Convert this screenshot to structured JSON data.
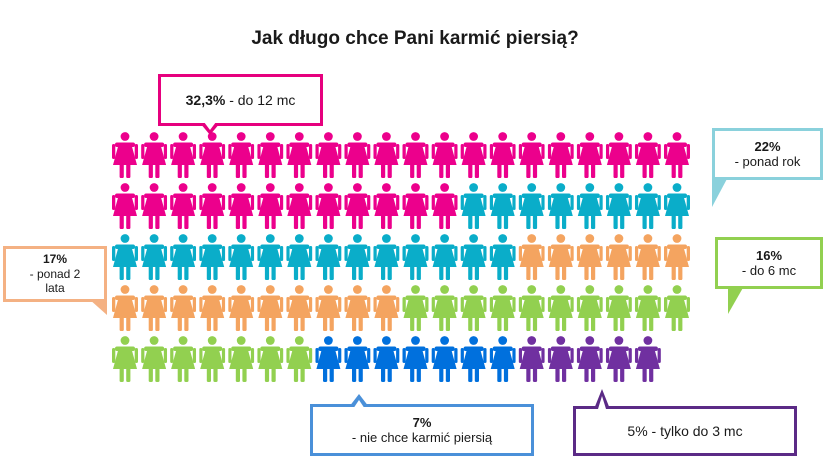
{
  "title": "Jak długo chce Pani karmić piersią?",
  "chart_data": {
    "type": "pictogram",
    "title": "Jak długo chce Pani karmić piersią?",
    "icon": "woman-icon",
    "series": [
      {
        "name": "do 12 mc",
        "label": "- do 12 mc",
        "value": 32.3,
        "value_label": "32,3%",
        "icons": 32,
        "color": "#ec008c"
      },
      {
        "name": "ponad rok",
        "label": "- ponad rok",
        "value": 22,
        "value_label": "22%",
        "icons": 22,
        "color": "#0aadc9"
      },
      {
        "name": "do 6 mc",
        "label": "- do 6 mc",
        "value": 16,
        "value_label": "16%",
        "icons": 16,
        "color": "#f4a460"
      },
      {
        "name": "ponad 2 lata",
        "label": "- ponad 2 lata",
        "value": 17,
        "value_label": "17%",
        "icons": 17,
        "color": "#92d050"
      },
      {
        "name": "nie chce karmić piersią",
        "label": "- nie chce karmić piersią",
        "value": 7,
        "value_label": "7%",
        "icons": 7,
        "color": "#0070dd"
      },
      {
        "name": "tylko do 3 mc",
        "label": "- tylko do 3 mc",
        "value": 5,
        "value_label": "5%",
        "icons": 5,
        "color": "#7030a0"
      }
    ],
    "grid": {
      "rows": 5,
      "columns": 20
    }
  },
  "callouts": {
    "do12": {
      "pct": "32,3%",
      "text": "- do 12 mc",
      "border": "#e6007e"
    },
    "ponadrok": {
      "pct": "22%",
      "text": "- ponad rok",
      "border": "#8ad1dc"
    },
    "do6": {
      "pct": "16%",
      "text": "- do 6 mc",
      "border": "#92d050"
    },
    "ponad2": {
      "pct": "17%",
      "text_line1": "- ponad 2",
      "text_line2": "lata",
      "border": "#f4b183"
    },
    "nie": {
      "pct": "7%",
      "text": "- nie chce karmić piersią",
      "border": "#4a90d9"
    },
    "do3": {
      "text": "5% - tylko do 3 mc",
      "border": "#5b2a86"
    }
  }
}
